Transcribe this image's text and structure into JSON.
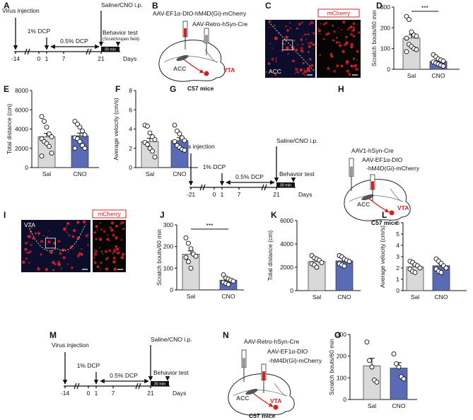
{
  "chart_data": [
    {
      "type": "bar",
      "panel": "D",
      "ylabel": "Scratch bouts/60 min",
      "categories": [
        "Sal",
        "CNO"
      ],
      "values": [
        150,
        38
      ],
      "errors": [
        17,
        5
      ],
      "points": [
        [
          255,
          240,
          180,
          165,
          160,
          150,
          120,
          110,
          100,
          95,
          85
        ],
        [
          70,
          60,
          50,
          45,
          40,
          35,
          30,
          25,
          20,
          15
        ]
      ],
      "colors": [
        "#d9d9d9",
        "#5a6bb5"
      ],
      "ylim": [
        0,
        300
      ],
      "yticks": [
        0,
        100,
        200,
        300
      ],
      "significance": "***"
    },
    {
      "type": "bar",
      "panel": "E",
      "ylabel": "Total distance (cm)",
      "categories": [
        "Sal",
        "CNO"
      ],
      "values": [
        3200,
        3300
      ],
      "errors": [
        350,
        280
      ],
      "points": [
        [
          5300,
          4800,
          4200,
          3500,
          3200,
          3000,
          2700,
          2500,
          2200,
          1500,
          1200
        ],
        [
          4800,
          4500,
          4200,
          3800,
          3400,
          3100,
          3000,
          2700,
          2300,
          2000,
          2000
        ]
      ],
      "colors": [
        "#d9d9d9",
        "#5a6bb5"
      ],
      "ylim": [
        0,
        8000
      ],
      "yticks": [
        0,
        2000,
        4000,
        6000,
        8000
      ]
    },
    {
      "type": "bar",
      "panel": "F",
      "ylabel": "Average velocity (cm/s)",
      "categories": [
        "Sal",
        "CNO"
      ],
      "values": [
        2.7,
        2.8
      ],
      "errors": [
        0.35,
        0.3
      ],
      "points": [
        [
          4.4,
          4.3,
          3.6,
          3.2,
          2.9,
          2.6,
          2.4,
          2.0,
          1.7,
          1.1
        ],
        [
          4.4,
          3.8,
          3.5,
          3.1,
          2.8,
          2.7,
          2.3,
          2.1,
          1.9,
          1.8
        ]
      ],
      "colors": [
        "#d9d9d9",
        "#5a6bb5"
      ],
      "ylim": [
        0,
        8
      ],
      "yticks": [
        0,
        2,
        4,
        6,
        8
      ]
    },
    {
      "type": "bar",
      "panel": "J",
      "ylabel": "Scratch bouts/60 min",
      "categories": [
        "Sal",
        "CNO"
      ],
      "values": [
        165,
        45
      ],
      "errors": [
        15,
        6
      ],
      "points": [
        [
          240,
          215,
          190,
          165,
          155,
          150,
          130,
          100
        ],
        [
          70,
          55,
          50,
          45,
          40,
          35,
          30,
          25
        ]
      ],
      "colors": [
        "#d9d9d9",
        "#5a6bb5"
      ],
      "ylim": [
        0,
        300
      ],
      "yticks": [
        0,
        100,
        200,
        300
      ],
      "significance": "***"
    },
    {
      "type": "bar",
      "panel": "K",
      "ylabel": "Total distance (cm)",
      "categories": [
        "Sal",
        "CNO"
      ],
      "values": [
        2500,
        2550
      ],
      "errors": [
        120,
        130
      ],
      "points": [
        [
          3000,
          2800,
          2700,
          2600,
          2400,
          2300,
          2200,
          2000
        ],
        [
          3000,
          2900,
          2700,
          2600,
          2500,
          2300,
          2200,
          2100
        ]
      ],
      "colors": [
        "#d9d9d9",
        "#5a6bb5"
      ],
      "ylim": [
        0,
        6000
      ],
      "yticks": [
        0,
        2000,
        4000,
        6000
      ]
    },
    {
      "type": "bar",
      "panel": "L",
      "ylabel": "Average velocity (cm/s)",
      "categories": [
        "Sal",
        "CNO"
      ],
      "values": [
        2.1,
        2.2
      ],
      "errors": [
        0.12,
        0.15
      ],
      "points": [
        [
          2.6,
          2.5,
          2.3,
          2.2,
          2.0,
          1.9,
          1.7,
          1.6
        ],
        [
          2.8,
          2.6,
          2.4,
          2.2,
          2.0,
          1.9,
          1.7,
          1.6
        ]
      ],
      "colors": [
        "#d9d9d9",
        "#5a6bb5"
      ],
      "ylim": [
        0,
        6
      ],
      "yticks": [
        0,
        1,
        2,
        3,
        4,
        5,
        6
      ]
    },
    {
      "type": "bar",
      "panel": "O",
      "ylabel": "Scratch bouts/60 min",
      "categories": [
        "Sal",
        "CNO"
      ],
      "values": [
        155,
        145
      ],
      "errors": [
        35,
        25
      ],
      "points": [
        [
          265,
          180,
          150,
          90,
          80
        ],
        [
          210,
          165,
          150,
          105,
          95
        ]
      ],
      "colors": [
        "#d9d9d9",
        "#5a6bb5"
      ],
      "ylim": [
        0,
        300
      ],
      "yticks": [
        0,
        100,
        200,
        300
      ]
    }
  ],
  "timelines": [
    {
      "panel": "A",
      "injection": "Virus injection",
      "dcp1": "1% DCP",
      "dcp05": "0.5% DCP",
      "ip": "Saline/CNO i.p.",
      "test": "Behavior test",
      "test_note": "(Scratch/open field)",
      "days": [
        "-14",
        "0",
        "1",
        "7",
        "21"
      ],
      "days_label": "Days",
      "window": "30 min"
    },
    {
      "panel": "G",
      "injection": "Virus injection",
      "dcp1": "1% DCP",
      "dcp05": "0.5% DCP",
      "ip": "Saline/CNO i.p.",
      "test": "Behavior test",
      "days": [
        "-21",
        "0",
        "1",
        "7",
        "21"
      ],
      "days_label": "Days",
      "window": "30 min"
    },
    {
      "panel": "M",
      "injection": "Virus injection",
      "dcp1": "1% DCP",
      "dcp05": "0.5% DCP",
      "ip": "Saline/CNO i.p.",
      "test": "Behavior test",
      "days": [
        "-14",
        "0",
        "1",
        "7",
        "21"
      ],
      "days_label": "Days",
      "window": "30 min"
    }
  ],
  "schematics": [
    {
      "panel": "B",
      "virus_lines": [
        "AAV-EF1α-DIO-hM4D(Gi)-mCherry",
        "AAV-Retro-hSyn-Cre"
      ],
      "acc": "ACC",
      "vta": "VTA",
      "mice": "C57 mice"
    },
    {
      "panel": "H",
      "virus_lines": [
        "AAV1-hSyn-Cre",
        "AAV-EF1α-DIO",
        "-hM4D(Gi)-mCherry"
      ],
      "acc": "ACC",
      "vta": "VTA",
      "mice": "C57 mice"
    },
    {
      "panel": "N",
      "virus_lines": [
        "AAV-Retro-hSyn-Cre",
        "AAV-EF1α-DIO",
        "-hM4D(Gi)-mCherry"
      ],
      "acc": "ACC",
      "vta": "VTA",
      "mice": "C57 mice"
    }
  ],
  "images": [
    {
      "panel": "C",
      "region": "ACC",
      "stain": "mCherry"
    },
    {
      "panel": "I",
      "region": "VTA",
      "stain": "mCherry"
    }
  ]
}
